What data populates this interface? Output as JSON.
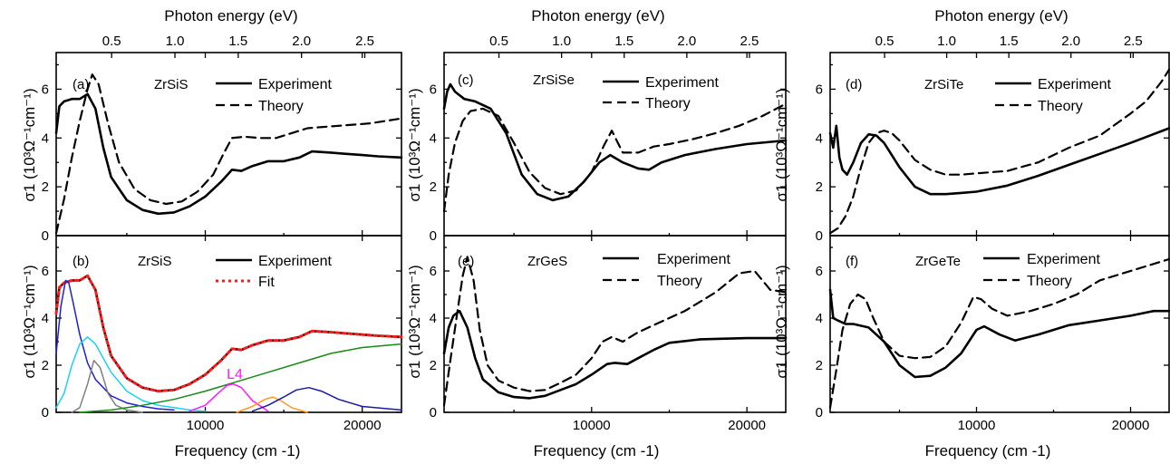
{
  "top_axis_label": "Photon energy (eV)",
  "bottom_axis_label": "Frequency (cm -1)",
  "y_axis_label": "σ1 (10³Ω⁻¹cm⁻¹)",
  "colors": {
    "experiment": "#000000",
    "theory": "#000000",
    "fit": "#ff1a1a",
    "component_blue": "#1f1fd6",
    "component_cyan": "#19d3f0",
    "component_gray": "#7f7f7f",
    "component_magenta": "#ff19ff",
    "component_orange": "#ff9a1a",
    "component_navy": "#1a1aa6",
    "component_green": "#178a17"
  },
  "chart_data": [
    {
      "panel": "(a)",
      "sample": "ZrSiS",
      "type": "line",
      "xlim": [
        500,
        22500
      ],
      "ylim": [
        0,
        7.5
      ],
      "xticks": [
        10000,
        20000
      ],
      "yticks": [
        0,
        2,
        4,
        6
      ],
      "top_ticks": [
        0.5,
        1.0,
        1.5,
        2.0,
        2.5
      ],
      "show_bottom_labels": false,
      "series": [
        {
          "name": "Experiment",
          "style": "solid",
          "x": [
            500,
            700,
            1000,
            1500,
            2000,
            2500,
            3000,
            3500,
            4000,
            5000,
            6000,
            7000,
            8000,
            9000,
            10000,
            11000,
            11700,
            12300,
            13000,
            14000,
            15000,
            16000,
            16800,
            18000,
            19000,
            20000,
            21000,
            22500
          ],
          "y": [
            4.2,
            5.3,
            5.5,
            5.6,
            5.6,
            5.8,
            5.2,
            3.6,
            2.4,
            1.45,
            1.05,
            0.9,
            0.95,
            1.2,
            1.6,
            2.2,
            2.7,
            2.65,
            2.85,
            3.05,
            3.05,
            3.2,
            3.45,
            3.4,
            3.35,
            3.3,
            3.25,
            3.2
          ]
        },
        {
          "name": "Theory",
          "style": "dashed",
          "x": [
            500,
            1000,
            1500,
            2000,
            2500,
            2800,
            3200,
            3800,
            4500,
            5500,
            6500,
            7500,
            8500,
            9500,
            10500,
            11200,
            11700,
            12500,
            13500,
            14500,
            15500,
            16500,
            17500,
            18500,
            19500,
            20500,
            21500,
            22500
          ],
          "y": [
            0.1,
            1.5,
            3.2,
            4.7,
            6.0,
            6.6,
            6.2,
            4.6,
            3.0,
            1.9,
            1.45,
            1.3,
            1.4,
            1.8,
            2.5,
            3.4,
            4.0,
            4.05,
            4.0,
            4.0,
            4.2,
            4.4,
            4.45,
            4.5,
            4.55,
            4.6,
            4.7,
            4.8
          ]
        }
      ]
    },
    {
      "panel": "(b)",
      "sample": "ZrSiS",
      "type": "line",
      "xlim": [
        500,
        22500
      ],
      "ylim": [
        0,
        7.5
      ],
      "xticks": [
        10000,
        20000
      ],
      "yticks": [
        0,
        2,
        4,
        6
      ],
      "show_bottom_labels": true,
      "annotation": "L4",
      "series": [
        {
          "name": "Experiment",
          "style": "solid",
          "x": [
            500,
            700,
            1000,
            1500,
            2000,
            2500,
            3000,
            3500,
            4000,
            5000,
            6000,
            7000,
            8000,
            9000,
            10000,
            11000,
            11700,
            12300,
            13000,
            14000,
            15000,
            16000,
            16800,
            18000,
            19000,
            20000,
            21000,
            22500
          ],
          "y": [
            4.2,
            5.3,
            5.5,
            5.6,
            5.6,
            5.8,
            5.2,
            3.6,
            2.4,
            1.45,
            1.05,
            0.9,
            0.95,
            1.2,
            1.6,
            2.2,
            2.7,
            2.65,
            2.85,
            3.05,
            3.05,
            3.2,
            3.45,
            3.4,
            3.35,
            3.3,
            3.25,
            3.2
          ]
        },
        {
          "name": "Fit",
          "style": "dotted",
          "x": [
            500,
            700,
            1000,
            1500,
            2000,
            2500,
            3000,
            3500,
            4000,
            5000,
            6000,
            7000,
            8000,
            9000,
            10000,
            11000,
            11700,
            12300,
            13000,
            14000,
            15000,
            16000,
            16800,
            18000,
            19000,
            20000,
            21000,
            22500
          ],
          "y": [
            4.2,
            5.3,
            5.5,
            5.6,
            5.6,
            5.8,
            5.2,
            3.6,
            2.4,
            1.45,
            1.05,
            0.9,
            0.95,
            1.2,
            1.6,
            2.2,
            2.7,
            2.65,
            2.85,
            3.05,
            3.05,
            3.2,
            3.45,
            3.4,
            3.35,
            3.3,
            3.25,
            3.2
          ]
        },
        {
          "style": "component",
          "color": "#1f1fd6",
          "x": [
            500,
            800,
            1100,
            1300,
            1600,
            2000,
            2500,
            3000,
            4000,
            5000,
            6000,
            7000,
            8000
          ],
          "y": [
            2.5,
            4.5,
            5.6,
            5.5,
            4.6,
            3.3,
            2.1,
            1.4,
            0.7,
            0.4,
            0.25,
            0.15,
            0.1
          ]
        },
        {
          "style": "component",
          "color": "#19d3f0",
          "x": [
            500,
            1000,
            1500,
            2000,
            2500,
            3000,
            3500,
            4000,
            5000,
            6000,
            7000,
            8000,
            9000,
            10000
          ],
          "y": [
            0.2,
            0.8,
            2.0,
            2.9,
            3.2,
            2.9,
            2.3,
            1.7,
            0.9,
            0.5,
            0.3,
            0.2,
            0.1,
            0.05
          ]
        },
        {
          "style": "component",
          "color": "#7f7f7f",
          "x": [
            1500,
            2000,
            2500,
            2900,
            3300,
            3800,
            4300,
            5000,
            6000
          ],
          "y": [
            0.0,
            0.2,
            1.2,
            2.2,
            1.9,
            0.8,
            0.3,
            0.1,
            0.0
          ]
        },
        {
          "style": "component",
          "color": "#178a17",
          "x": [
            2000,
            4000,
            6000,
            8000,
            10000,
            12000,
            14000,
            16000,
            18000,
            20000,
            22500
          ],
          "y": [
            0.0,
            0.1,
            0.3,
            0.55,
            0.9,
            1.3,
            1.7,
            2.1,
            2.5,
            2.75,
            2.9
          ]
        },
        {
          "style": "component",
          "color": "#ff19ff",
          "x": [
            9000,
            10000,
            10800,
            11400,
            11800,
            12300,
            13000,
            14000
          ],
          "y": [
            0.05,
            0.3,
            0.8,
            1.15,
            1.2,
            1.05,
            0.5,
            0.05
          ]
        },
        {
          "style": "component",
          "color": "#ff9a1a",
          "x": [
            12000,
            13000,
            13800,
            14300,
            14800,
            15500,
            16500
          ],
          "y": [
            0.0,
            0.25,
            0.55,
            0.65,
            0.5,
            0.2,
            0.0
          ]
        },
        {
          "style": "component",
          "color": "#1a1aa6",
          "x": [
            13000,
            14000,
            15000,
            15800,
            16600,
            17400,
            18500,
            20000,
            22500
          ],
          "y": [
            0.05,
            0.3,
            0.65,
            0.95,
            1.05,
            0.9,
            0.55,
            0.25,
            0.1
          ]
        }
      ]
    },
    {
      "panel": "(c)",
      "sample": "ZrSiSe",
      "type": "line",
      "xlim": [
        500,
        22500
      ],
      "ylim": [
        0,
        7.5
      ],
      "xticks": [
        10000,
        20000
      ],
      "yticks": [
        0,
        2,
        4,
        6
      ],
      "top_ticks": [
        0.5,
        1.0,
        1.5,
        2.0,
        2.5
      ],
      "show_bottom_labels": false,
      "series": [
        {
          "name": "Experiment",
          "style": "solid",
          "x": [
            500,
            700,
            900,
            1200,
            1800,
            2500,
            3500,
            4500,
            5500,
            6500,
            7500,
            8500,
            9500,
            10500,
            11200,
            12000,
            13000,
            13700,
            14500,
            16000,
            18000,
            20000,
            22500
          ],
          "y": [
            5.2,
            5.9,
            6.2,
            5.9,
            5.6,
            5.5,
            5.2,
            4.2,
            2.5,
            1.7,
            1.45,
            1.6,
            2.2,
            3.0,
            3.3,
            3.0,
            2.75,
            2.7,
            3.0,
            3.3,
            3.55,
            3.75,
            3.9
          ]
        },
        {
          "name": "Theory",
          "style": "dashed",
          "x": [
            500,
            800,
            1200,
            1700,
            2200,
            3000,
            4000,
            5000,
            6000,
            7000,
            8000,
            9000,
            10000,
            10800,
            11300,
            12000,
            13000,
            14000,
            15000,
            16500,
            18000,
            19500,
            21000,
            22500
          ],
          "y": [
            1.0,
            2.5,
            3.8,
            4.7,
            5.1,
            5.2,
            4.9,
            3.8,
            2.6,
            1.95,
            1.7,
            1.85,
            2.6,
            3.7,
            4.3,
            3.4,
            3.4,
            3.65,
            3.75,
            3.95,
            4.2,
            4.5,
            4.9,
            5.4
          ]
        }
      ]
    },
    {
      "panel": "(e)",
      "sample": "ZrGeS",
      "type": "line",
      "xlim": [
        500,
        22500
      ],
      "ylim": [
        0,
        7.5
      ],
      "xticks": [
        10000,
        20000
      ],
      "yticks": [
        0,
        2,
        4,
        6
      ],
      "show_bottom_labels": true,
      "series": [
        {
          "name": "Experiment",
          "style": "solid",
          "x": [
            500,
            800,
            1100,
            1500,
            2000,
            2500,
            3000,
            4000,
            5000,
            6000,
            7000,
            8000,
            9000,
            10000,
            11000,
            11500,
            12300,
            13000,
            14000,
            15000,
            17000,
            20000,
            22500
          ],
          "y": [
            2.5,
            3.6,
            4.1,
            4.3,
            3.6,
            2.3,
            1.4,
            0.85,
            0.65,
            0.6,
            0.7,
            0.95,
            1.2,
            1.6,
            2.05,
            2.1,
            2.05,
            2.3,
            2.65,
            2.95,
            3.1,
            3.15,
            3.15
          ]
        },
        {
          "name": "Theory",
          "style": "dashed",
          "x": [
            500,
            900,
            1300,
            1700,
            2000,
            2400,
            2800,
            3300,
            4000,
            5000,
            6000,
            7000,
            8000,
            9000,
            10000,
            10700,
            11300,
            12000,
            13000,
            14000,
            16000,
            18000,
            19500,
            20500,
            21500,
            22500
          ],
          "y": [
            0.3,
            2.2,
            4.0,
            5.8,
            6.6,
            5.6,
            3.5,
            2.0,
            1.35,
            1.05,
            0.9,
            0.95,
            1.25,
            1.6,
            2.3,
            3.0,
            3.2,
            3.0,
            3.4,
            3.7,
            4.3,
            5.1,
            5.9,
            6.0,
            5.2,
            5.1
          ]
        }
      ]
    },
    {
      "panel": "(d)",
      "sample": "ZrSiTe",
      "type": "line",
      "xlim": [
        500,
        22500
      ],
      "ylim": [
        0,
        7.5
      ],
      "xticks": [
        10000,
        20000
      ],
      "yticks": [
        0,
        2,
        4,
        6
      ],
      "top_ticks": [
        0.5,
        1.0,
        1.5,
        2.0,
        2.5
      ],
      "show_bottom_labels": false,
      "series": [
        {
          "name": "Experiment",
          "style": "solid",
          "x": [
            500,
            700,
            900,
            1100,
            1300,
            1600,
            2000,
            2500,
            3000,
            3500,
            4000,
            4500,
            5000,
            6000,
            7000,
            8000,
            9000,
            10000,
            12000,
            14000,
            16000,
            18000,
            20000,
            22500
          ],
          "y": [
            4.2,
            3.6,
            4.5,
            3.2,
            2.7,
            2.5,
            3.0,
            3.8,
            4.15,
            4.1,
            3.8,
            3.3,
            2.8,
            2.0,
            1.7,
            1.7,
            1.75,
            1.8,
            2.05,
            2.45,
            2.9,
            3.35,
            3.8,
            4.4
          ]
        },
        {
          "name": "Theory",
          "style": "dashed",
          "x": [
            500,
            1000,
            1500,
            2000,
            2500,
            3000,
            3500,
            4000,
            4500,
            5000,
            6000,
            7000,
            8000,
            9000,
            10000,
            12000,
            14000,
            16000,
            18000,
            20000,
            21000,
            22000,
            22500
          ],
          "y": [
            0.1,
            0.3,
            0.8,
            1.6,
            2.8,
            3.8,
            4.2,
            4.3,
            4.2,
            3.9,
            3.1,
            2.7,
            2.5,
            2.5,
            2.55,
            2.65,
            3.0,
            3.6,
            4.1,
            5.0,
            5.5,
            6.3,
            6.8
          ]
        }
      ]
    },
    {
      "panel": "(f)",
      "sample": "ZrGeTe",
      "type": "line",
      "xlim": [
        500,
        22500
      ],
      "ylim": [
        0,
        7.5
      ],
      "xticks": [
        10000,
        20000
      ],
      "yticks": [
        0,
        2,
        4,
        6
      ],
      "show_bottom_labels": true,
      "series": [
        {
          "name": "Experiment",
          "style": "solid",
          "x": [
            500,
            700,
            1000,
            1500,
            2000,
            3000,
            4000,
            5000,
            6000,
            7000,
            8000,
            9000,
            10000,
            10500,
            11500,
            12500,
            14000,
            16000,
            18000,
            20000,
            21500,
            22500
          ],
          "y": [
            5.2,
            4.0,
            3.9,
            3.75,
            3.75,
            3.6,
            3.0,
            2.0,
            1.5,
            1.55,
            1.9,
            2.5,
            3.5,
            3.65,
            3.3,
            3.05,
            3.3,
            3.7,
            3.9,
            4.1,
            4.3,
            4.3
          ]
        },
        {
          "name": "Theory",
          "style": "dashed",
          "x": [
            500,
            900,
            1300,
            1800,
            2300,
            2800,
            3300,
            4000,
            5000,
            6000,
            7000,
            8000,
            9000,
            9800,
            10300,
            11000,
            12000,
            13500,
            15000,
            16500,
            18000,
            19500,
            21000,
            22500
          ],
          "y": [
            0.2,
            1.8,
            3.5,
            4.6,
            5.0,
            4.8,
            4.0,
            3.0,
            2.4,
            2.3,
            2.35,
            2.8,
            3.8,
            4.9,
            4.8,
            4.4,
            4.1,
            4.3,
            4.6,
            5.0,
            5.6,
            5.9,
            6.2,
            6.5
          ]
        }
      ]
    }
  ],
  "legends": {
    "experiment": "Experiment",
    "theory": "Theory",
    "fit": "Fit"
  }
}
